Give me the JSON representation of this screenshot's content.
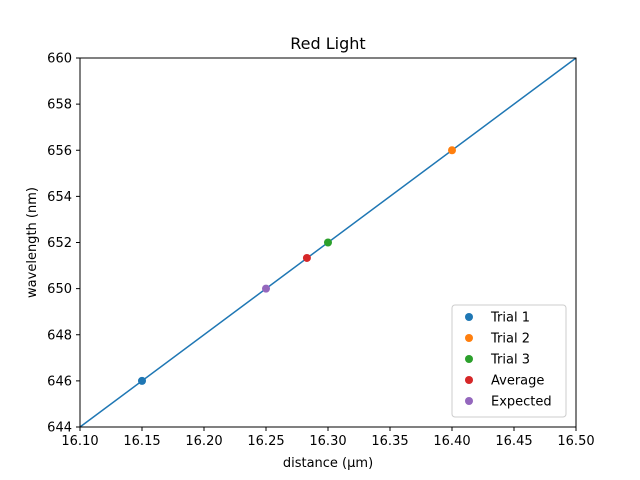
{
  "chart_data": {
    "type": "scatter",
    "title": "Red Light",
    "xlabel": "distance (µm)",
    "ylabel": "wavelength (nm)",
    "xlim": [
      16.1,
      16.5
    ],
    "ylim": [
      644,
      660
    ],
    "x_ticks": [
      "16.10",
      "16.15",
      "16.20",
      "16.25",
      "16.30",
      "16.35",
      "16.40",
      "16.45",
      "16.50"
    ],
    "y_ticks": [
      "644",
      "646",
      "648",
      "650",
      "652",
      "654",
      "656",
      "658",
      "660"
    ],
    "grid": false,
    "legend_position": "bottom-right",
    "line": {
      "x": [
        16.1,
        16.5
      ],
      "y": [
        644,
        660
      ],
      "color": "#1f77b4"
    },
    "series": [
      {
        "name": "Trial 1",
        "x": [
          16.15
        ],
        "y": [
          646
        ],
        "color": "#1f77b4"
      },
      {
        "name": "Trial 2",
        "x": [
          16.4
        ],
        "y": [
          656
        ],
        "color": "#ff7f0e"
      },
      {
        "name": "Trial 3",
        "x": [
          16.3
        ],
        "y": [
          652
        ],
        "color": "#2ca02c"
      },
      {
        "name": "Average",
        "x": [
          16.283
        ],
        "y": [
          651.33
        ],
        "color": "#d62728"
      },
      {
        "name": "Expected",
        "x": [
          16.25
        ],
        "y": [
          650
        ],
        "color": "#9467bd"
      }
    ]
  }
}
